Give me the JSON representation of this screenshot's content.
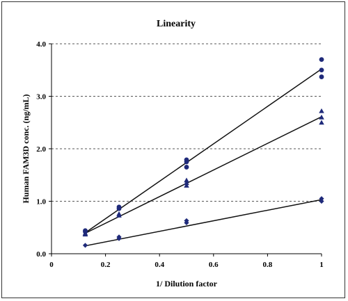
{
  "chart_data": {
    "type": "scatter",
    "title": "Linearity",
    "xlabel": "1/ Dilution factor",
    "ylabel": "Human FAM3D conc. (ng/mL)",
    "xlim": [
      0,
      1
    ],
    "ylim": [
      0,
      4.0
    ],
    "x_ticks": [
      0,
      0.2,
      0.4,
      0.6,
      0.8,
      1
    ],
    "x_tick_labels": [
      "0",
      "0.2",
      "0.4",
      "0.6",
      "0.8",
      "1"
    ],
    "y_ticks": [
      0,
      1.0,
      2.0,
      3.0,
      4.0
    ],
    "y_tick_labels": [
      "0.0",
      "1.0",
      "2.0",
      "3.0",
      "4.0"
    ],
    "grid": "horizontal dashed",
    "colors": {
      "marker": "#1f2a7a",
      "line": "#111111",
      "grid": "#555555"
    },
    "series": [
      {
        "marker": "circle",
        "points": [
          [
            0.125,
            0.44
          ],
          [
            0.125,
            0.42
          ],
          [
            0.25,
            0.89
          ],
          [
            0.25,
            0.86
          ],
          [
            0.5,
            1.79
          ],
          [
            0.5,
            1.75
          ],
          [
            0.5,
            1.65
          ],
          [
            1,
            3.7
          ],
          [
            1,
            3.5
          ],
          [
            1,
            3.37
          ]
        ],
        "fit": [
          [
            0.125,
            0.4
          ],
          [
            1,
            3.52
          ]
        ]
      },
      {
        "marker": "triangle",
        "points": [
          [
            0.125,
            0.39
          ],
          [
            0.125,
            0.37
          ],
          [
            0.25,
            0.76
          ],
          [
            0.25,
            0.73
          ],
          [
            0.5,
            1.4
          ],
          [
            0.5,
            1.35
          ],
          [
            0.5,
            1.3
          ],
          [
            1,
            2.72
          ],
          [
            1,
            2.6
          ],
          [
            1,
            2.5
          ]
        ],
        "fit": [
          [
            0.125,
            0.39
          ],
          [
            1,
            2.61
          ]
        ]
      },
      {
        "marker": "diamond",
        "points": [
          [
            0.125,
            0.16
          ],
          [
            0.25,
            0.32
          ],
          [
            0.25,
            0.29
          ],
          [
            0.5,
            0.63
          ],
          [
            0.5,
            0.59
          ],
          [
            1,
            1.05
          ],
          [
            1,
            1.0
          ]
        ],
        "fit": [
          [
            0.125,
            0.15
          ],
          [
            1,
            1.03
          ]
        ]
      }
    ]
  }
}
